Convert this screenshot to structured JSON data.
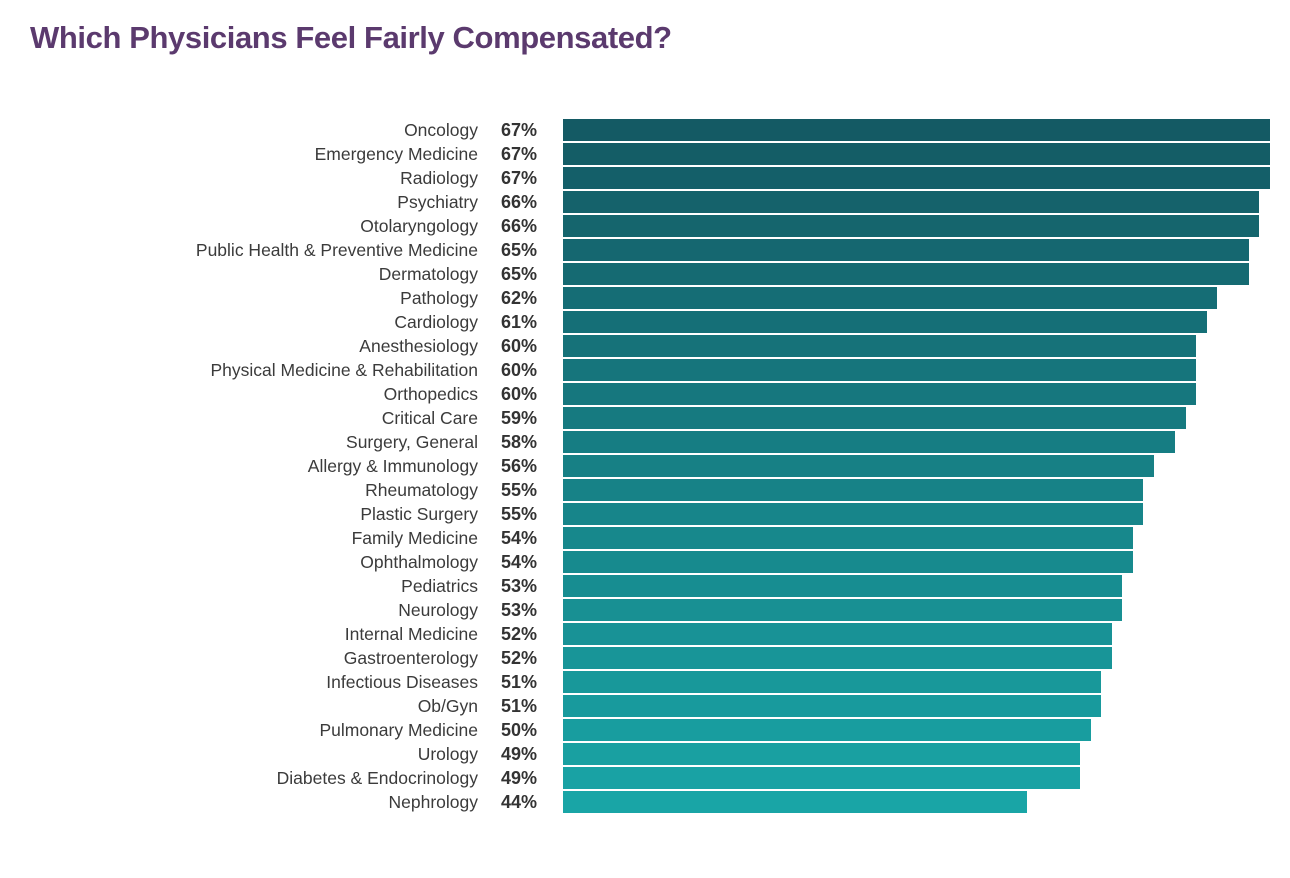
{
  "title": "Which Physicians Feel Fairly Compensated?",
  "title_color": "#5b3a6e",
  "chart_data": {
    "type": "bar",
    "orientation": "horizontal",
    "title": "Which Physicians Feel Fairly Compensated?",
    "xlabel": "",
    "ylabel": "",
    "xlim": [
      0,
      67
    ],
    "max_value": 67,
    "grid": false,
    "legend": "none",
    "value_suffix": "%",
    "bar_color_top": "#145a64",
    "bar_color_bottom": "#19a5a6",
    "label_color": "#3b3b3b",
    "value_label_color": "#333333",
    "categories": [
      "Oncology",
      "Emergency Medicine",
      "Radiology",
      "Psychiatry",
      "Otolaryngology",
      "Public Health & Preventive Medicine",
      "Dermatology",
      "Pathology",
      "Cardiology",
      "Anesthesiology",
      "Physical Medicine & Rehabilitation",
      "Orthopedics",
      "Critical Care",
      "Surgery, General",
      "Allergy & Immunology",
      "Rheumatology",
      "Plastic Surgery",
      "Family Medicine",
      "Ophthalmology",
      "Pediatrics",
      "Neurology",
      "Internal Medicine",
      "Gastroenterology",
      "Infectious Diseases",
      "Ob/Gyn",
      "Pulmonary Medicine",
      "Urology",
      "Diabetes & Endocrinology",
      "Nephrology"
    ],
    "values": [
      67,
      67,
      67,
      66,
      66,
      65,
      65,
      62,
      61,
      60,
      60,
      60,
      59,
      58,
      56,
      55,
      55,
      54,
      54,
      53,
      53,
      52,
      52,
      51,
      51,
      50,
      49,
      49,
      44
    ]
  }
}
